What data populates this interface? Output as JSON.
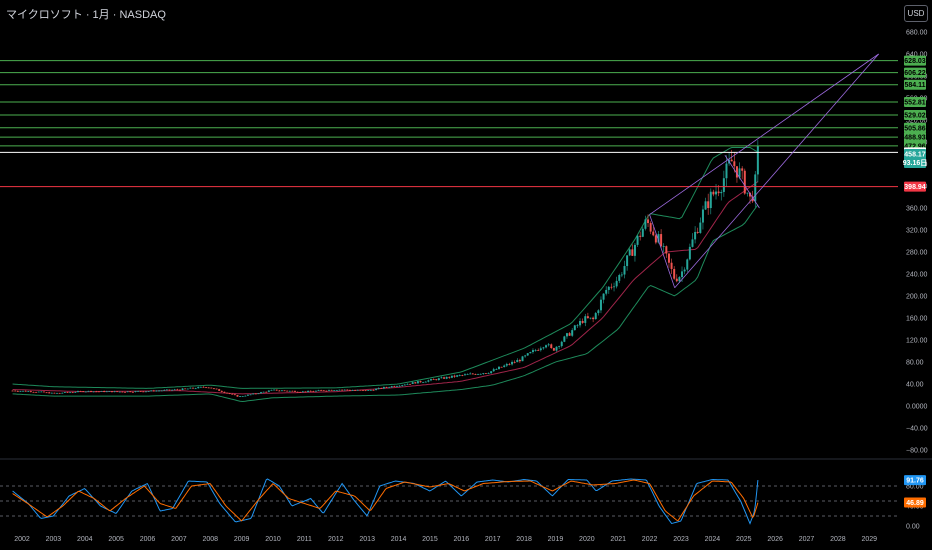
{
  "header": {
    "title": "マイクロソフト · 1月 · NASDAQ",
    "currency": "USD"
  },
  "colors": {
    "background": "#000000",
    "up_candle": "#26a69a",
    "down_candle": "#ef5350",
    "resistance_line": "#4caf50",
    "resistance_tag": "#4caf50",
    "support_line": "#f23645",
    "white_line": "#ffffff",
    "channel_line": "#9c6ade",
    "bb_band": "#1e8a5b",
    "bb_basis": "#a0254a",
    "stoch_k": "#2196f3",
    "stoch_d": "#ff6d00",
    "current_price_tag": "#26a69a"
  },
  "chart_data": [
    {
      "type": "candlestick",
      "name": "main",
      "ylim": [
        -80,
        680
      ],
      "y_ticks": [
        "680.00",
        "640.00",
        "600.00",
        "560.00",
        "520.00",
        "480.00",
        "440.00",
        "400.00",
        "360.00",
        "320.00",
        "280.00",
        "240.00",
        "200.00",
        "160.00",
        "120.00",
        "80.00",
        "40.00",
        "0.0000",
        "−40.00",
        "−80.00"
      ],
      "y_tick_values": [
        680,
        640,
        600,
        560,
        520,
        480,
        440,
        400,
        360,
        320,
        280,
        240,
        200,
        160,
        120,
        80,
        40,
        0,
        -40,
        -80
      ],
      "x_ticks": [
        "2002",
        "2003",
        "2004",
        "2005",
        "2006",
        "2007",
        "2008",
        "2009",
        "2010",
        "2011",
        "2012",
        "2013",
        "2014",
        "2015",
        "2016",
        "2017",
        "2018",
        "2019",
        "2020",
        "2021",
        "2022",
        "2023",
        "2024",
        "2025",
        "2026",
        "2027",
        "2028",
        "2029"
      ],
      "x_range": [
        2001.7,
        2029.4
      ],
      "price_anchors": [
        [
          2001.7,
          28
        ],
        [
          2002.5,
          26
        ],
        [
          2003.0,
          23
        ],
        [
          2004.0,
          27
        ],
        [
          2005.0,
          26
        ],
        [
          2006.0,
          27
        ],
        [
          2007.0,
          30
        ],
        [
          2007.9,
          35
        ],
        [
          2008.9,
          17
        ],
        [
          2009.2,
          20
        ],
        [
          2010.0,
          29
        ],
        [
          2011.0,
          26
        ],
        [
          2012.0,
          30
        ],
        [
          2013.0,
          28
        ],
        [
          2013.9,
          37
        ],
        [
          2014.9,
          46
        ],
        [
          2015.9,
          55
        ],
        [
          2016.9,
          62
        ],
        [
          2017.9,
          85
        ],
        [
          2018.7,
          114
        ],
        [
          2018.9,
          101
        ],
        [
          2019.9,
          158
        ],
        [
          2020.2,
          157
        ],
        [
          2020.6,
          210
        ],
        [
          2021.0,
          232
        ],
        [
          2021.9,
          336
        ],
        [
          2022.3,
          300
        ],
        [
          2022.8,
          232
        ],
        [
          2023.0,
          239
        ],
        [
          2023.6,
          338
        ],
        [
          2023.9,
          376
        ],
        [
          2024.3,
          406
        ],
        [
          2024.6,
          446
        ],
        [
          2024.9,
          420
        ],
        [
          2025.2,
          375
        ],
        [
          2025.35,
          395
        ],
        [
          2025.45,
          458.17
        ]
      ],
      "horizontal_levels": [
        {
          "value": 628.03,
          "label": "628.03",
          "kind": "resistance"
        },
        {
          "value": 606.22,
          "label": "606.22",
          "kind": "resistance"
        },
        {
          "value": 584.11,
          "label": "584.11",
          "kind": "resistance"
        },
        {
          "value": 552.81,
          "label": "552.81",
          "kind": "resistance"
        },
        {
          "value": 529.02,
          "label": "529.02",
          "kind": "resistance"
        },
        {
          "value": 505.86,
          "label": "505.86",
          "kind": "resistance"
        },
        {
          "value": 488.93,
          "label": "488.93",
          "kind": "resistance"
        },
        {
          "value": 472.96,
          "label": "472.96",
          "kind": "resistance"
        },
        {
          "value": 461.04,
          "label": "461.04",
          "kind": "white"
        },
        {
          "value": 398.94,
          "label": "398.94",
          "kind": "support"
        }
      ],
      "current_price": {
        "value": 458.17,
        "label": "458.17",
        "sub_label": "93.16日"
      },
      "channel_lines": [
        {
          "from": [
            2022.0,
            348
          ],
          "to": [
            2029.3,
            640
          ]
        },
        {
          "from": [
            2022.8,
            215
          ],
          "to": [
            2029.3,
            640
          ]
        },
        {
          "from": [
            2022.0,
            348
          ],
          "to": [
            2022.8,
            215
          ]
        },
        {
          "from": [
            2024.4,
            456
          ],
          "to": [
            2025.5,
            360
          ]
        }
      ],
      "bb_upper_anchors": [
        [
          2001.7,
          40
        ],
        [
          2003,
          35
        ],
        [
          2006,
          32
        ],
        [
          2008,
          38
        ],
        [
          2009,
          32
        ],
        [
          2012,
          33
        ],
        [
          2014,
          40
        ],
        [
          2016,
          62
        ],
        [
          2018,
          105
        ],
        [
          2019.5,
          150
        ],
        [
          2020.5,
          215
        ],
        [
          2021.5,
          300
        ],
        [
          2022,
          350
        ],
        [
          2023,
          340
        ],
        [
          2024,
          450
        ],
        [
          2024.6,
          470
        ],
        [
          2025.2,
          470
        ],
        [
          2025.5,
          460
        ]
      ],
      "bb_lower_anchors": [
        [
          2001.7,
          22
        ],
        [
          2003,
          18
        ],
        [
          2006,
          18
        ],
        [
          2008,
          22
        ],
        [
          2009,
          8
        ],
        [
          2010,
          15
        ],
        [
          2012,
          18
        ],
        [
          2014,
          20
        ],
        [
          2016,
          30
        ],
        [
          2017,
          38
        ],
        [
          2018,
          55
        ],
        [
          2019,
          80
        ],
        [
          2020,
          95
        ],
        [
          2021,
          140
        ],
        [
          2022,
          220
        ],
        [
          2022.8,
          200
        ],
        [
          2023.5,
          230
        ],
        [
          2024,
          300
        ],
        [
          2025,
          330
        ],
        [
          2025.5,
          370
        ]
      ],
      "bb_basis_anchors": [
        [
          2001.7,
          30
        ],
        [
          2004,
          26
        ],
        [
          2007,
          28
        ],
        [
          2009,
          22
        ],
        [
          2012,
          26
        ],
        [
          2014,
          34
        ],
        [
          2016,
          45
        ],
        [
          2018,
          70
        ],
        [
          2019.5,
          110
        ],
        [
          2020.5,
          160
        ],
        [
          2021.5,
          230
        ],
        [
          2022.5,
          280
        ],
        [
          2023.5,
          285
        ],
        [
          2024.5,
          370
        ],
        [
          2025.5,
          410
        ]
      ]
    },
    {
      "type": "line",
      "name": "stochastic",
      "ylim": [
        0,
        100
      ],
      "y_ticks": [
        "80.00",
        "40.00",
        "0.00"
      ],
      "y_tick_values": [
        80,
        40,
        0
      ],
      "dashed_levels": [
        80,
        50,
        20
      ],
      "series": [
        {
          "name": "%K",
          "color": "#2196f3",
          "last_value": 91.76,
          "last_label": "91.76",
          "anchors": [
            [
              2001.7,
              70
            ],
            [
              2002.2,
              45
            ],
            [
              2002.6,
              15
            ],
            [
              2003.0,
              20
            ],
            [
              2003.5,
              60
            ],
            [
              2004.0,
              75
            ],
            [
              2004.5,
              40
            ],
            [
              2005.0,
              25
            ],
            [
              2005.5,
              70
            ],
            [
              2006.0,
              85
            ],
            [
              2006.4,
              30
            ],
            [
              2006.8,
              35
            ],
            [
              2007.3,
              90
            ],
            [
              2007.9,
              88
            ],
            [
              2008.3,
              45
            ],
            [
              2008.8,
              8
            ],
            [
              2009.3,
              15
            ],
            [
              2009.8,
              95
            ],
            [
              2010.2,
              80
            ],
            [
              2010.6,
              40
            ],
            [
              2011.2,
              55
            ],
            [
              2011.6,
              25
            ],
            [
              2012.2,
              85
            ],
            [
              2012.6,
              50
            ],
            [
              2013.0,
              20
            ],
            [
              2013.4,
              80
            ],
            [
              2013.9,
              90
            ],
            [
              2014.5,
              85
            ],
            [
              2015.0,
              70
            ],
            [
              2015.5,
              90
            ],
            [
              2016.0,
              60
            ],
            [
              2016.5,
              88
            ],
            [
              2017.0,
              92
            ],
            [
              2017.5,
              88
            ],
            [
              2018.0,
              93
            ],
            [
              2018.4,
              90
            ],
            [
              2018.9,
              60
            ],
            [
              2019.4,
              93
            ],
            [
              2020.0,
              92
            ],
            [
              2020.3,
              70
            ],
            [
              2020.8,
              90
            ],
            [
              2021.4,
              94
            ],
            [
              2021.9,
              92
            ],
            [
              2022.3,
              40
            ],
            [
              2022.7,
              5
            ],
            [
              2023.0,
              10
            ],
            [
              2023.5,
              85
            ],
            [
              2024.0,
              93
            ],
            [
              2024.5,
              92
            ],
            [
              2024.9,
              50
            ],
            [
              2025.2,
              5
            ],
            [
              2025.35,
              30
            ],
            [
              2025.45,
              91.76
            ]
          ]
        },
        {
          "name": "%D",
          "color": "#ff6d00",
          "last_value": 46.89,
          "last_label": "46.89",
          "anchors": [
            [
              2001.7,
              65
            ],
            [
              2002.3,
              40
            ],
            [
              2002.8,
              18
            ],
            [
              2003.3,
              40
            ],
            [
              2003.8,
              70
            ],
            [
              2004.3,
              55
            ],
            [
              2004.8,
              30
            ],
            [
              2005.3,
              55
            ],
            [
              2005.9,
              80
            ],
            [
              2006.4,
              45
            ],
            [
              2006.9,
              35
            ],
            [
              2007.4,
              80
            ],
            [
              2008.0,
              85
            ],
            [
              2008.5,
              40
            ],
            [
              2009.0,
              10
            ],
            [
              2009.5,
              50
            ],
            [
              2010.0,
              85
            ],
            [
              2010.5,
              55
            ],
            [
              2011.0,
              45
            ],
            [
              2011.5,
              35
            ],
            [
              2012.0,
              70
            ],
            [
              2012.6,
              60
            ],
            [
              2013.1,
              30
            ],
            [
              2013.6,
              75
            ],
            [
              2014.2,
              88
            ],
            [
              2015.0,
              78
            ],
            [
              2015.6,
              85
            ],
            [
              2016.1,
              70
            ],
            [
              2016.7,
              85
            ],
            [
              2017.5,
              89
            ],
            [
              2018.2,
              90
            ],
            [
              2018.9,
              70
            ],
            [
              2019.5,
              90
            ],
            [
              2020.2,
              82
            ],
            [
              2020.9,
              85
            ],
            [
              2021.5,
              92
            ],
            [
              2022.0,
              85
            ],
            [
              2022.5,
              30
            ],
            [
              2022.9,
              10
            ],
            [
              2023.4,
              60
            ],
            [
              2024.0,
              90
            ],
            [
              2024.6,
              88
            ],
            [
              2025.0,
              55
            ],
            [
              2025.3,
              15
            ],
            [
              2025.45,
              46.89
            ]
          ]
        }
      ]
    }
  ]
}
